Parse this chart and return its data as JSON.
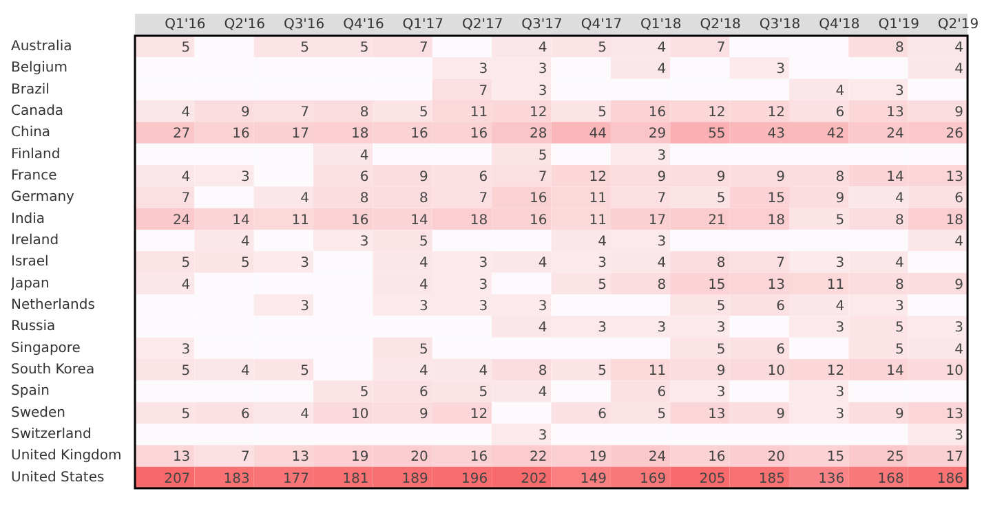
{
  "chart_data": {
    "type": "heatmap",
    "data_labels": true,
    "categories": [
      "Q1'16",
      "Q2'16",
      "Q3'16",
      "Q4'16",
      "Q1'17",
      "Q2'17",
      "Q3'17",
      "Q4'17",
      "Q1'18",
      "Q2'18",
      "Q3'18",
      "Q4'18",
      "Q1'19",
      "Q2'19"
    ],
    "y_categories": [
      "Australia",
      "Belgium",
      "Brazil",
      "Canada",
      "China",
      "Finland",
      "France",
      "Germany",
      "India",
      "Ireland",
      "Israel",
      "Japan",
      "Netherlands",
      "Russia",
      "Singapore",
      "South Korea",
      "Spain",
      "Sweden",
      "Switzerland",
      "United Kingdom",
      "United States"
    ],
    "cells": [
      [
        5,
        null,
        5,
        5,
        7,
        null,
        4,
        5,
        4,
        7,
        null,
        null,
        8,
        4
      ],
      [
        null,
        null,
        null,
        null,
        null,
        3,
        3,
        null,
        4,
        null,
        3,
        null,
        null,
        4
      ],
      [
        null,
        null,
        null,
        null,
        null,
        7,
        3,
        null,
        null,
        null,
        null,
        4,
        3,
        null
      ],
      [
        4,
        9,
        7,
        8,
        5,
        11,
        12,
        5,
        16,
        12,
        12,
        6,
        13,
        9
      ],
      [
        27,
        16,
        17,
        18,
        16,
        16,
        28,
        44,
        29,
        55,
        43,
        42,
        24,
        26
      ],
      [
        null,
        null,
        null,
        4,
        null,
        null,
        5,
        null,
        3,
        null,
        null,
        null,
        null,
        null
      ],
      [
        4,
        3,
        null,
        6,
        9,
        6,
        7,
        12,
        9,
        9,
        9,
        8,
        14,
        13
      ],
      [
        7,
        null,
        4,
        8,
        8,
        7,
        16,
        11,
        7,
        5,
        15,
        9,
        4,
        6
      ],
      [
        24,
        14,
        11,
        16,
        14,
        18,
        16,
        11,
        17,
        21,
        18,
        5,
        8,
        18
      ],
      [
        null,
        4,
        null,
        3,
        5,
        null,
        null,
        4,
        3,
        null,
        null,
        null,
        null,
        4
      ],
      [
        5,
        5,
        3,
        null,
        4,
        3,
        4,
        3,
        4,
        8,
        7,
        3,
        4,
        null
      ],
      [
        4,
        null,
        null,
        null,
        4,
        3,
        null,
        5,
        8,
        15,
        13,
        11,
        8,
        9
      ],
      [
        null,
        null,
        3,
        null,
        3,
        3,
        3,
        null,
        null,
        5,
        6,
        4,
        3,
        null
      ],
      [
        null,
        null,
        null,
        null,
        null,
        null,
        4,
        3,
        3,
        3,
        null,
        3,
        5,
        3
      ],
      [
        3,
        null,
        null,
        null,
        5,
        null,
        null,
        null,
        null,
        5,
        6,
        null,
        5,
        4
      ],
      [
        5,
        4,
        5,
        null,
        4,
        4,
        8,
        5,
        11,
        9,
        10,
        12,
        14,
        10
      ],
      [
        null,
        null,
        null,
        5,
        6,
        5,
        4,
        null,
        6,
        3,
        null,
        3,
        null,
        null
      ],
      [
        5,
        6,
        4,
        10,
        9,
        12,
        null,
        6,
        5,
        13,
        9,
        3,
        9,
        13
      ],
      [
        null,
        null,
        null,
        null,
        null,
        null,
        3,
        null,
        null,
        null,
        null,
        null,
        null,
        3
      ],
      [
        13,
        7,
        13,
        19,
        20,
        16,
        22,
        19,
        24,
        16,
        20,
        15,
        25,
        17
      ],
      [
        207,
        183,
        177,
        181,
        189,
        196,
        202,
        149,
        169,
        205,
        185,
        136,
        168,
        186
      ]
    ]
  }
}
